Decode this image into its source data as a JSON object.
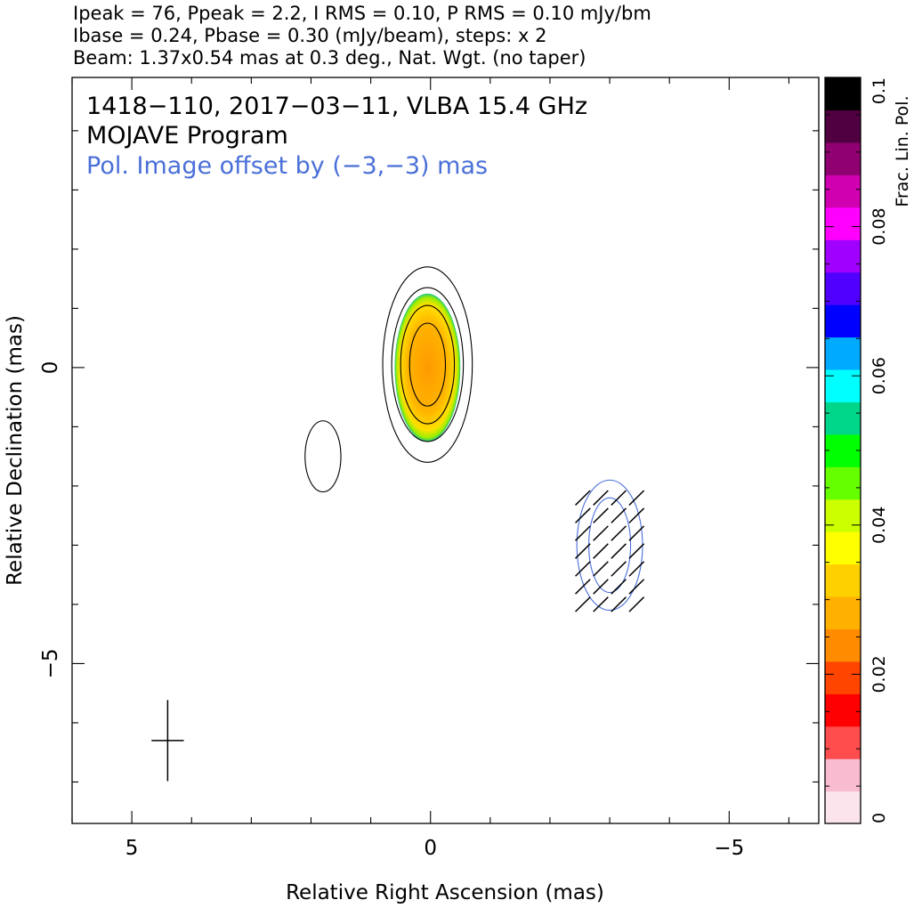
{
  "chart_data": {
    "type": "contour",
    "header_lines": [
      "Ipeak = 76, Ppeak = 2.2, I RMS = 0.10, P RMS = 0.10 mJy/bm",
      "Ibase = 0.24, Pbase = 0.30 (mJy/beam), steps: x 2",
      "Beam: 1.37x0.54 mas at 0.3 deg., Nat. Wgt. (no taper)"
    ],
    "title_lines": [
      "1418−110, 2017−03−11, VLBA 15.4 GHz",
      "MOJAVE Program"
    ],
    "pol_note": "Pol. Image offset by (−3,−3) mas",
    "xlabel": "Relative Right Ascension (mas)",
    "ylabel": "Relative Declination (mas)",
    "xlim": [
      6.0,
      -6.5
    ],
    "ylim": [
      -7.7,
      4.9
    ],
    "x_ticks": [
      {
        "value": 5,
        "label": "5"
      },
      {
        "value": 0,
        "label": "0"
      },
      {
        "value": -5,
        "label": "−5"
      }
    ],
    "y_ticks": [
      {
        "value": 0,
        "label": "0"
      },
      {
        "value": -5,
        "label": "−5"
      }
    ],
    "colorbar": {
      "label": "Frac. Lin. Pol.",
      "range": [
        0,
        0.1
      ],
      "ticks": [
        {
          "value": 0,
          "label": "0"
        },
        {
          "value": 0.02,
          "label": "0.02"
        },
        {
          "value": 0.04,
          "label": "0.04"
        },
        {
          "value": 0.06,
          "label": "0.06"
        },
        {
          "value": 0.08,
          "label": "0.08"
        },
        {
          "value": 0.1,
          "label": "0.1"
        }
      ],
      "colors": [
        "#fce4ec",
        "#f8bbd0",
        "#ff4d4d",
        "#ff0000",
        "#ff4500",
        "#ff8c00",
        "#ffb000",
        "#ffd000",
        "#ffff00",
        "#ccff00",
        "#66ff00",
        "#00ff00",
        "#00d68a",
        "#00ffff",
        "#00aaff",
        "#0000ff",
        "#5000ff",
        "#a000ff",
        "#ff00ff",
        "#d000b0",
        "#900070",
        "#500040",
        "#000000"
      ]
    },
    "stokes_i_contours": [
      {
        "center": [
          0.05,
          0.05
        ],
        "rx": [
          0.3,
          0.45,
          0.6,
          0.75
        ],
        "ry": [
          0.7,
          1.0,
          1.3,
          1.65
        ]
      },
      {
        "center": [
          1.8,
          -1.5
        ],
        "rx": [
          0.3
        ],
        "ry": [
          0.6
        ]
      }
    ],
    "pol_core": {
      "center": [
        0.05,
        0.0
      ],
      "rx": 0.55,
      "ry": 1.25
    },
    "pol_contours_offset": {
      "center": [
        -3.0,
        -3.0
      ],
      "rx": [
        0.35,
        0.55
      ],
      "ry": [
        0.8,
        1.1
      ]
    },
    "evpa_deg": 45,
    "beam": {
      "center": [
        4.4,
        -6.3
      ],
      "major": 1.37,
      "minor": 0.54,
      "pa": 0.3
    }
  }
}
